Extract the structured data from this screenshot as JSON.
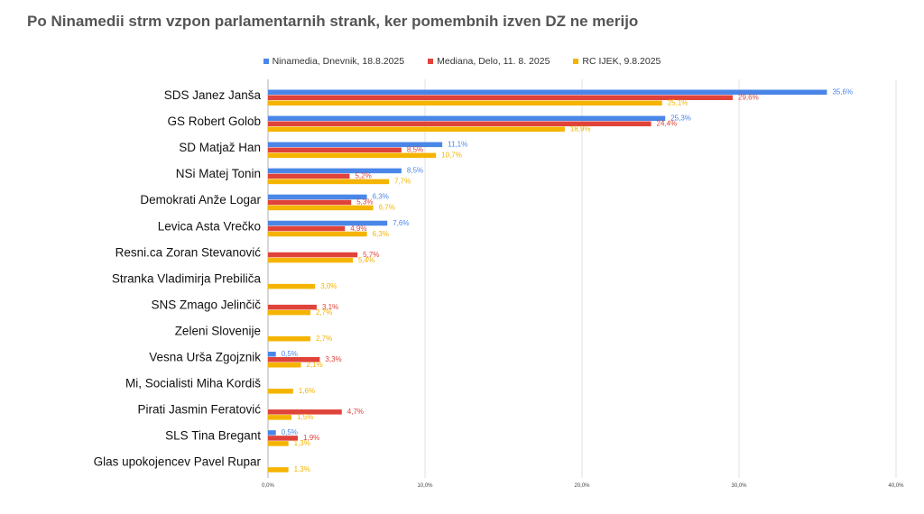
{
  "chart_data": {
    "type": "bar",
    "orientation": "horizontal",
    "title": "Po Ninamedii strm vzpon parlamentarnih strank, ker pomembnih izven DZ ne merijo",
    "xlabel": "",
    "ylabel": "",
    "xlim": [
      0,
      40
    ],
    "x_ticks": [
      "0,0%",
      "10,0%",
      "20,0%",
      "30,0%",
      "40,0%"
    ],
    "grid": true,
    "legend_position": "top",
    "categories": [
      "SDS Janez Janša",
      "GS Robert Golob",
      "SD Matjaž Han",
      "NSi Matej Tonin",
      "Demokrati Anže Logar",
      "Levica  Asta Vrečko",
      "Resni.ca Zoran Stevanović",
      "Stranka Vladimirja Prebiliča",
      "SNS Zmago Jelinčič",
      "Zeleni Slovenije",
      "Vesna Urša Zgojznik",
      "Mi, Socialisti Miha Kordiš",
      "Pirati Jasmin Feratović",
      "SLS Tina Bregant",
      "Glas upokojencev Pavel Rupar"
    ],
    "series": [
      {
        "name": "Ninamedia, Dnevnik, 18.8.2025",
        "color": "#4a86e8",
        "values": [
          35.6,
          25.3,
          11.1,
          8.5,
          6.3,
          7.6,
          null,
          null,
          null,
          null,
          0.5,
          null,
          null,
          0.5,
          null
        ],
        "labels": [
          "35,6%",
          "25,3%",
          "11,1%",
          "8,5%",
          "6,3%",
          "7,6%",
          "",
          "",
          "",
          "",
          "0,5%",
          "",
          "",
          "0,5%",
          ""
        ]
      },
      {
        "name": "Mediana, Delo, 11. 8.  2025",
        "color": "#e0433a",
        "values": [
          29.6,
          24.4,
          8.5,
          5.2,
          5.3,
          4.9,
          5.7,
          null,
          3.1,
          null,
          3.3,
          null,
          4.7,
          1.9,
          null
        ],
        "labels": [
          "29,6%",
          "24,4%",
          "8,5%",
          "5,2%",
          "5,3%",
          "4,9%",
          "5,7%",
          "",
          "3,1%",
          "",
          "3,3%",
          "",
          "4,7%",
          "1,9%",
          ""
        ]
      },
      {
        "name": "RC IJEK, 9.8.2025",
        "color": "#f4b400",
        "values": [
          25.1,
          18.9,
          10.7,
          7.7,
          6.7,
          6.3,
          5.4,
          3.0,
          2.7,
          2.7,
          2.1,
          1.6,
          1.5,
          1.3,
          1.3
        ],
        "labels": [
          "25,1%",
          "18,9%",
          "10,7%",
          "7,7%",
          "6,7%",
          "6,3%",
          "5,4%",
          "3,0%",
          "2,7%",
          "2,7%",
          "2,1%",
          "1,6%",
          "1,5%",
          "1,3%",
          "1,3%"
        ]
      }
    ]
  }
}
